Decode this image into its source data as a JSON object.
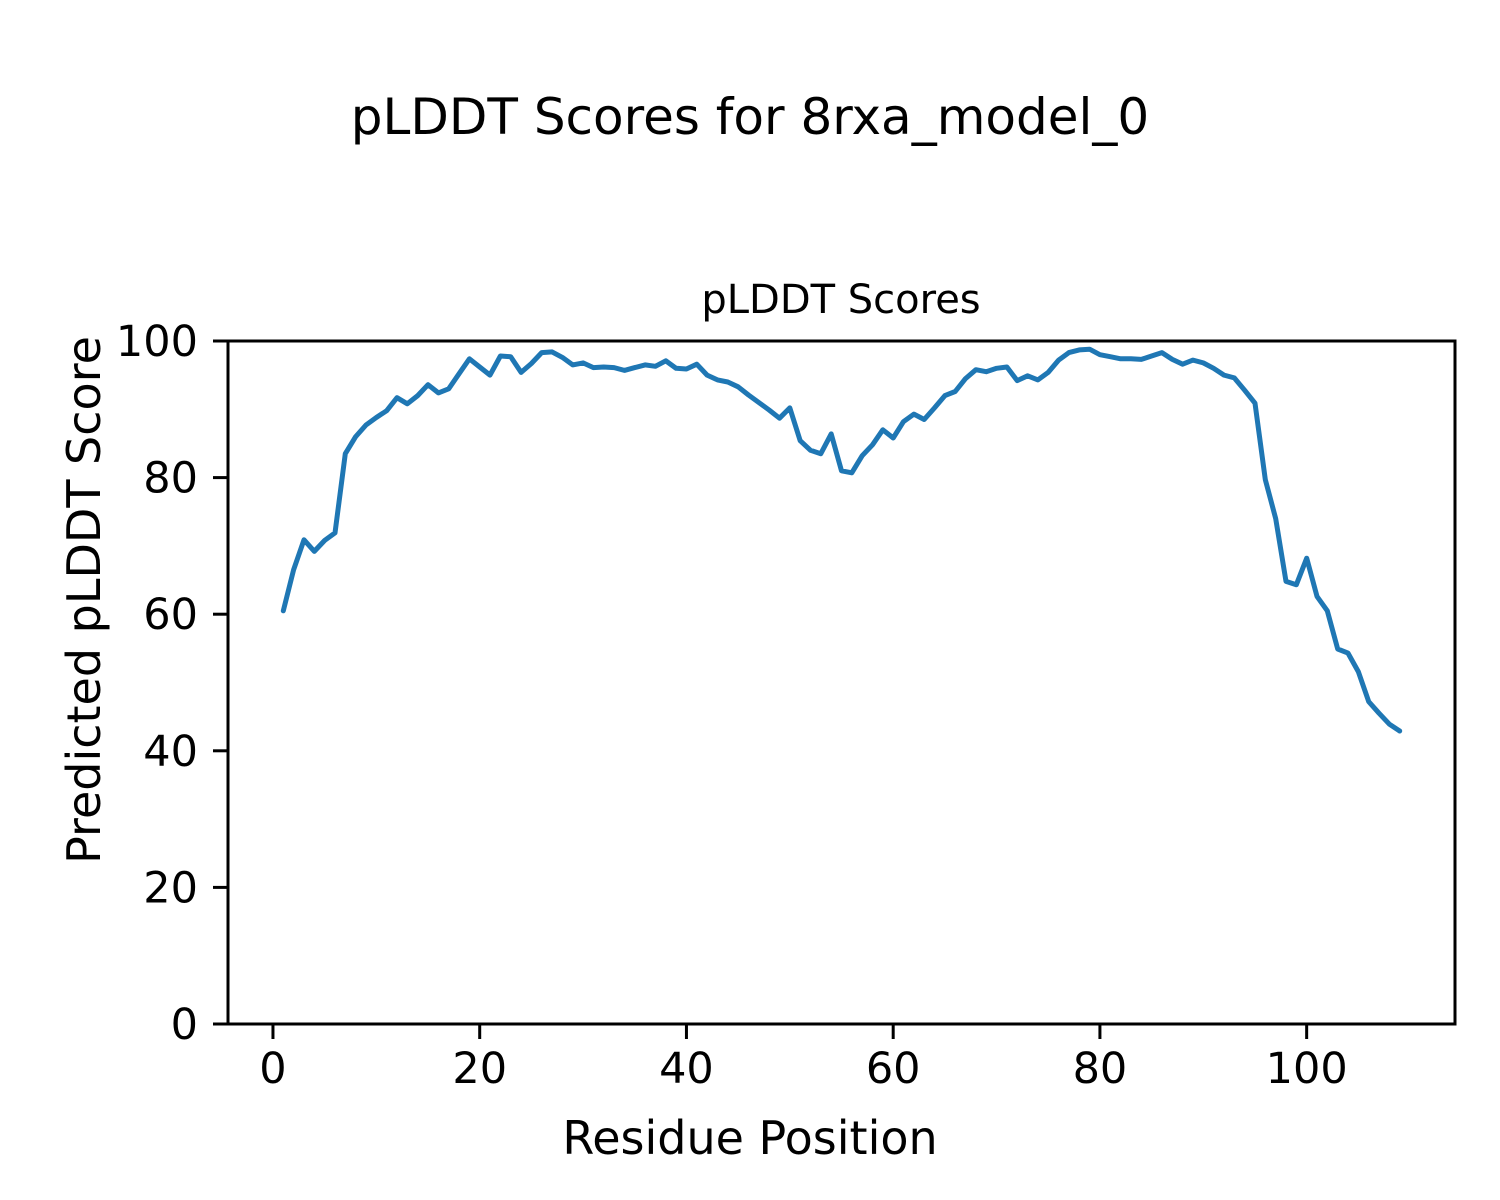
{
  "figure": {
    "suptitle": "pLDDT Scores for 8rxa_model_0",
    "xlabel": "Residue Position",
    "ylabel": "Predicted pLDDT Score"
  },
  "chart_data": {
    "type": "line",
    "title": "pLDDT Scores",
    "xlabel": "Residue Position",
    "ylabel": "Predicted pLDDT Score",
    "xlim": [
      -4.35,
      114.35
    ],
    "ylim": [
      0,
      100
    ],
    "x_ticks": [
      0,
      20,
      40,
      60,
      80,
      100
    ],
    "y_ticks": [
      0,
      20,
      40,
      60,
      80,
      100
    ],
    "grid": false,
    "legend_position": "none",
    "line_color": "#1f77b4",
    "spine_color": "#000000",
    "series": [
      {
        "name": "pLDDT",
        "x": [
          1,
          2,
          3,
          4,
          5,
          6,
          7,
          8,
          9,
          10,
          11,
          12,
          13,
          14,
          15,
          16,
          17,
          18,
          19,
          20,
          21,
          22,
          23,
          24,
          25,
          26,
          27,
          28,
          29,
          30,
          31,
          32,
          33,
          34,
          35,
          36,
          37,
          38,
          39,
          40,
          41,
          42,
          43,
          44,
          45,
          46,
          47,
          48,
          49,
          50,
          51,
          52,
          53,
          54,
          55,
          56,
          57,
          58,
          59,
          60,
          61,
          62,
          63,
          64,
          65,
          66,
          67,
          68,
          69,
          70,
          71,
          72,
          73,
          74,
          75,
          76,
          77,
          78,
          79,
          80,
          81,
          82,
          83,
          84,
          85,
          86,
          87,
          88,
          89,
          90,
          91,
          92,
          93,
          94,
          95,
          96,
          97,
          98,
          99,
          100,
          101,
          102,
          103,
          104,
          105,
          106,
          107,
          108,
          109
        ],
        "y": [
          60.5,
          66.5,
          70.9,
          69.2,
          70.8,
          71.9,
          83.5,
          86.0,
          87.7,
          88.8,
          89.8,
          91.7,
          90.8,
          92.0,
          93.6,
          92.4,
          93.0,
          95.2,
          97.4,
          96.2,
          95.0,
          97.8,
          97.7,
          95.4,
          96.7,
          98.3,
          98.4,
          97.6,
          96.5,
          96.8,
          96.1,
          96.2,
          96.1,
          95.7,
          96.1,
          96.5,
          96.3,
          97.1,
          96.0,
          95.9,
          96.6,
          95.0,
          94.3,
          94.0,
          93.3,
          92.1,
          91.0,
          89.9,
          88.7,
          90.2,
          85.4,
          84.0,
          83.5,
          86.4,
          81.0,
          80.7,
          83.2,
          84.8,
          87.0,
          85.8,
          88.2,
          89.3,
          88.5,
          90.2,
          92.0,
          92.6,
          94.5,
          95.8,
          95.5,
          96.0,
          96.2,
          94.2,
          94.9,
          94.3,
          95.4,
          97.2,
          98.3,
          98.7,
          98.8,
          98.0,
          97.7,
          97.4,
          97.4,
          97.3,
          97.8,
          98.3,
          97.3,
          96.6,
          97.2,
          96.8,
          96.0,
          95.0,
          94.6,
          92.8,
          90.9,
          79.7,
          74.0,
          64.8,
          64.3,
          68.2,
          62.6,
          60.5,
          54.9,
          54.3,
          51.6,
          47.2,
          45.5,
          43.9,
          42.9
        ]
      }
    ]
  }
}
